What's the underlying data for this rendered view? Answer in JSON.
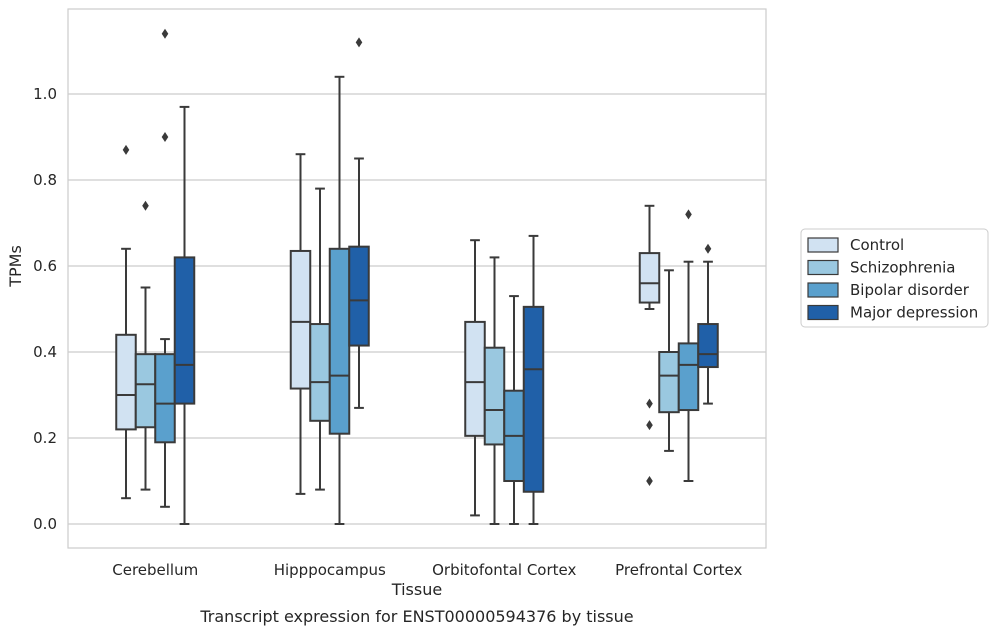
{
  "chart_data": {
    "type": "boxplot",
    "xlabel": "Tissue",
    "ylabel": "TPMs",
    "caption": "Transcript expression for ENST00000594376 by tissue",
    "ylim": [
      -0.055,
      1.2
    ],
    "yticks": [
      0.0,
      0.2,
      0.4,
      0.6,
      0.8,
      1.0
    ],
    "ytick_labels": [
      "0.0",
      "0.2",
      "0.4",
      "0.6",
      "0.8",
      "1.0"
    ],
    "grid": true,
    "legend_position": "right",
    "categories": [
      "Cerebellum",
      "Hipppocampus",
      "Orbitofontal Cortex",
      "Prefrontal Cortex"
    ],
    "series": [
      {
        "name": "Control",
        "color": "#d1e2f2",
        "boxes": [
          {
            "whisker_low": 0.06,
            "q1": 0.22,
            "median": 0.3,
            "q3": 0.44,
            "whisker_high": 0.64,
            "outliers": [
              0.87
            ]
          },
          {
            "whisker_low": 0.07,
            "q1": 0.315,
            "median": 0.47,
            "q3": 0.635,
            "whisker_high": 0.86,
            "outliers": []
          },
          {
            "whisker_low": 0.02,
            "q1": 0.205,
            "median": 0.33,
            "q3": 0.47,
            "whisker_high": 0.66,
            "outliers": []
          },
          {
            "whisker_low": 0.5,
            "q1": 0.515,
            "median": 0.56,
            "q3": 0.63,
            "whisker_high": 0.74,
            "outliers": [
              0.28,
              0.23,
              0.1
            ]
          }
        ]
      },
      {
        "name": "Schizophrenia",
        "color": "#9ac8e0",
        "boxes": [
          {
            "whisker_low": 0.08,
            "q1": 0.225,
            "median": 0.325,
            "q3": 0.395,
            "whisker_high": 0.55,
            "outliers": [
              0.74
            ]
          },
          {
            "whisker_low": 0.08,
            "q1": 0.24,
            "median": 0.33,
            "q3": 0.465,
            "whisker_high": 0.78,
            "outliers": []
          },
          {
            "whisker_low": 0.0,
            "q1": 0.185,
            "median": 0.265,
            "q3": 0.41,
            "whisker_high": 0.62,
            "outliers": []
          },
          {
            "whisker_low": 0.17,
            "q1": 0.26,
            "median": 0.345,
            "q3": 0.4,
            "whisker_high": 0.59,
            "outliers": []
          }
        ]
      },
      {
        "name": "Bipolar disorder",
        "color": "#5aa0cd",
        "boxes": [
          {
            "whisker_low": 0.04,
            "q1": 0.19,
            "median": 0.28,
            "q3": 0.395,
            "whisker_high": 0.43,
            "outliers": [
              0.9,
              1.14
            ]
          },
          {
            "whisker_low": 0.0,
            "q1": 0.21,
            "median": 0.345,
            "q3": 0.64,
            "whisker_high": 1.04,
            "outliers": []
          },
          {
            "whisker_low": 0.0,
            "q1": 0.1,
            "median": 0.205,
            "q3": 0.31,
            "whisker_high": 0.53,
            "outliers": []
          },
          {
            "whisker_low": 0.1,
            "q1": 0.265,
            "median": 0.37,
            "q3": 0.42,
            "whisker_high": 0.61,
            "outliers": [
              0.72
            ]
          }
        ]
      },
      {
        "name": "Major depression",
        "color": "#2060a8",
        "boxes": [
          {
            "whisker_low": 0.0,
            "q1": 0.28,
            "median": 0.37,
            "q3": 0.62,
            "whisker_high": 0.97,
            "outliers": []
          },
          {
            "whisker_low": 0.27,
            "q1": 0.415,
            "median": 0.52,
            "q3": 0.645,
            "whisker_high": 0.85,
            "outliers": [
              1.12
            ]
          },
          {
            "whisker_low": 0.0,
            "q1": 0.075,
            "median": 0.36,
            "q3": 0.505,
            "whisker_high": 0.67,
            "outliers": []
          },
          {
            "whisker_low": 0.28,
            "q1": 0.365,
            "median": 0.395,
            "q3": 0.465,
            "whisker_high": 0.61,
            "outliers": [
              0.64
            ]
          }
        ]
      }
    ]
  }
}
